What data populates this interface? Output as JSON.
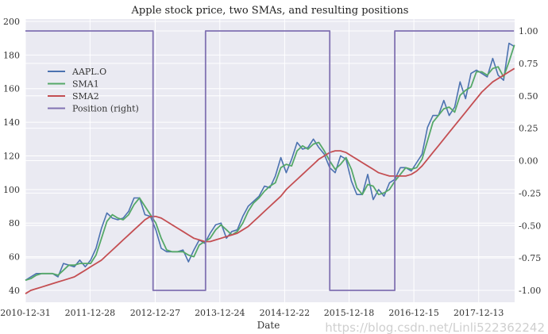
{
  "chart_data": {
    "type": "line",
    "title": "Apple stock price, two SMAs, and resulting positions",
    "xlabel": "Date",
    "ylabel": "",
    "x_tick_labels": [
      "2010-12-31",
      "2011-12-28",
      "2012-12-27",
      "2013-12-24",
      "2014-12-22",
      "2015-12-18",
      "2016-12-15",
      "2017-12-13"
    ],
    "y_left_ticks": [
      40,
      60,
      80,
      100,
      120,
      140,
      160,
      180,
      200
    ],
    "y_right_ticks": [
      "-1.00",
      "-0.75",
      "-0.50",
      "-0.25",
      "0.00",
      "0.25",
      "0.50",
      "0.75",
      "1.00"
    ],
    "y_right_values": [
      -1,
      -0.75,
      -0.5,
      -0.25,
      0,
      0.25,
      0.5,
      0.75,
      1
    ],
    "ylim_left": [
      33,
      201
    ],
    "ylim_right": [
      -1.1,
      1.05
    ],
    "xlim": [
      "2010-12-31",
      "2018-06-29"
    ],
    "grid": true,
    "legend_position": "center-left",
    "x_months": "monthly from 2010-12 to 2018-06",
    "series": [
      {
        "name": "AAPL.O",
        "color": "#4c72b0",
        "axis": "left",
        "values": [
          46,
          48,
          50,
          50,
          50,
          50,
          48,
          56,
          55,
          54,
          58,
          54,
          58,
          65,
          77,
          86,
          83,
          82,
          83,
          87,
          95,
          95,
          85,
          84,
          76,
          65,
          63,
          63,
          63,
          64,
          57,
          64,
          70,
          68,
          74,
          79,
          80,
          71,
          75,
          76,
          84,
          90,
          93,
          96,
          102,
          101,
          108,
          119,
          110,
          118,
          128,
          124,
          125,
          130,
          125,
          121,
          113,
          110,
          120,
          118,
          105,
          97,
          97,
          109,
          94,
          100,
          96,
          104,
          106,
          113,
          113,
          111,
          116,
          121,
          137,
          144,
          144,
          153,
          144,
          149,
          164,
          154,
          169,
          171,
          169,
          167,
          178,
          168,
          165,
          187,
          185
        ]
      },
      {
        "name": "SMA1",
        "color": "#55a868",
        "axis": "left",
        "values": [
          46,
          47,
          49,
          50,
          50,
          50,
          49,
          52,
          55,
          55,
          56,
          56,
          56,
          61,
          71,
          81,
          85,
          83,
          82,
          85,
          91,
          95,
          90,
          85,
          80,
          71,
          64,
          63,
          63,
          63,
          61,
          60,
          67,
          69,
          71,
          76,
          79,
          76,
          73,
          75,
          80,
          87,
          92,
          95,
          99,
          102,
          104,
          113,
          115,
          114,
          123,
          126,
          124,
          127,
          128,
          123,
          117,
          112,
          115,
          119,
          112,
          101,
          97,
          103,
          102,
          97,
          98,
          100,
          105,
          109,
          113,
          112,
          113,
          118,
          129,
          140,
          144,
          148,
          149,
          146,
          156,
          159,
          161,
          170,
          170,
          168,
          172,
          173,
          167,
          176,
          186
        ]
      },
      {
        "name": "SMA2",
        "color": "#c44e52",
        "axis": "left",
        "values": [
          38,
          40,
          41,
          42,
          43,
          44,
          45,
          46,
          47,
          48,
          50,
          52,
          54,
          56,
          58,
          61,
          64,
          67,
          70,
          73,
          76,
          79,
          82,
          84,
          84,
          83,
          81,
          79,
          77,
          75,
          73,
          71,
          70,
          69,
          69,
          70,
          71,
          72,
          73,
          74,
          76,
          78,
          81,
          84,
          87,
          90,
          93,
          96,
          100,
          103,
          106,
          109,
          112,
          115,
          118,
          120,
          122,
          123,
          123,
          122,
          120,
          118,
          116,
          114,
          112,
          110,
          109,
          108,
          108,
          108,
          108,
          109,
          111,
          114,
          118,
          122,
          126,
          130,
          134,
          138,
          142,
          146,
          150,
          154,
          158,
          161,
          164,
          166,
          168,
          170,
          172
        ]
      },
      {
        "name": "Position (right)",
        "color": "#8172b2",
        "axis": "right",
        "segments": [
          {
            "from": "2010-12-31",
            "to": "2012-12-15",
            "value": 1
          },
          {
            "from": "2012-12-15",
            "to": "2013-10-05",
            "value": -1
          },
          {
            "from": "2013-10-05",
            "to": "2015-09-01",
            "value": 1
          },
          {
            "from": "2015-09-01",
            "to": "2016-08-30",
            "value": -1
          },
          {
            "from": "2016-08-30",
            "to": "2018-06-29",
            "value": 1
          }
        ]
      }
    ]
  },
  "watermark": "https://blog.csdn.net/Linli522362242"
}
